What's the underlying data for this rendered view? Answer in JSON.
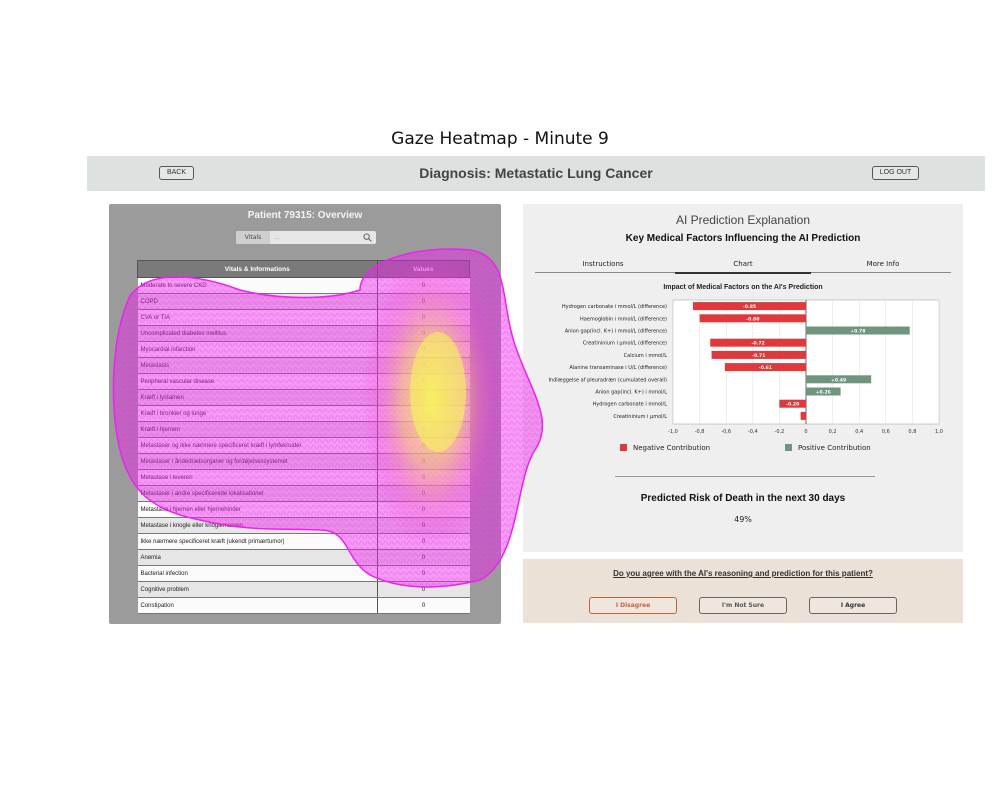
{
  "figure_title": "Gaze Heatmap - Minute 9",
  "header": {
    "back_label": "BACK",
    "title": "Diagnosis: Metastatic Lung Cancer",
    "logout_label": "LOG OUT"
  },
  "overview": {
    "title": "Patient 79315: Overview",
    "search_tag": "Vitals",
    "search_placeholder": "...",
    "col_left": "Vitals & Informations",
    "col_right": "Values",
    "rows": [
      {
        "name": "Moderate to severe CKD",
        "value": "0"
      },
      {
        "name": "COPD",
        "value": "0"
      },
      {
        "name": "CVA or TIA",
        "value": "0"
      },
      {
        "name": "Uncomplicated diabetes mellitus",
        "value": "0"
      },
      {
        "name": "Myocardial infarction",
        "value": "0"
      },
      {
        "name": "Metastasis",
        "value": "0"
      },
      {
        "name": "Peripheral vascular disease",
        "value": "0"
      },
      {
        "name": "Kræft i lystamen",
        "value": "0"
      },
      {
        "name": "Kræft i bronkier og lunge",
        "value": "1"
      },
      {
        "name": "Kræft i hjernen",
        "value": "0"
      },
      {
        "name": "Metastaser og ikke nærmere specificeret kræft i lymfeknuder",
        "value": "0"
      },
      {
        "name": "Metastaser i åndedrætsorganer og fordøjelsessystemet",
        "value": "0"
      },
      {
        "name": "Metastase i leveren",
        "value": "0"
      },
      {
        "name": "Metastaser i andre specificerede lokalisationer",
        "value": "0"
      },
      {
        "name": "Metastase i hjernen eller hjernehinder",
        "value": "0"
      },
      {
        "name": "Metastase i knogle eller knoglemarven",
        "value": "0"
      },
      {
        "name": "Ikke nærmere specificeret kræft (ukendt primærtumor)",
        "value": "0"
      },
      {
        "name": "Anemia",
        "value": "0"
      },
      {
        "name": "Bacterial infection",
        "value": "0"
      },
      {
        "name": "Cognitive problem",
        "value": "0"
      },
      {
        "name": "Constipation",
        "value": "0"
      }
    ]
  },
  "explanation": {
    "title": "AI Prediction Explanation",
    "subtitle": "Key Medical Factors Influencing the AI Prediction",
    "tabs": [
      "Instructions",
      "Chart",
      "More Info"
    ],
    "active_tab": "Chart",
    "risk_title": "Predicted Risk of Death in the next 30 days",
    "risk_value": "49%"
  },
  "chart_data": {
    "type": "bar",
    "orientation": "horizontal",
    "title": "Impact of Medical Factors on the AI's Prediction",
    "categories": [
      "Hydrogen carbonate i mmol/L (difference)",
      "Haemoglobin i mmol/L (difference)",
      "Anion gap(incl. K+) i mmol/L (difference)",
      "Creatininium i µmol/L (difference)",
      "Calcium i mmol/L",
      "Alanine transaminase i U/L (difference)",
      "Indlæggelse af pleuradræn (cumulated overall)",
      "Anion gap(incl. K+) i mmol/L",
      "Hydrogen carbonate i mmol/L",
      "Creatininium i µmol/L"
    ],
    "values": [
      -0.85,
      -0.8,
      0.78,
      -0.72,
      -0.71,
      -0.61,
      0.49,
      0.26,
      -0.2,
      -0.04
    ],
    "labels": [
      "-0.85",
      "-0.80",
      "+0.78",
      "-0.72",
      "-0.71",
      "-0.61",
      "+0.49",
      "+0.26",
      "-0.20",
      ""
    ],
    "xlim": [
      -1.0,
      1.0
    ],
    "xticks": [
      "-1,0",
      "-0,8",
      "-0,6",
      "-0,4",
      "-0,2",
      "0",
      "0,2",
      "0,4",
      "0,6",
      "0,8",
      "1,0"
    ],
    "grid": true,
    "negative_color": "#e0393c",
    "positive_color": "#6f957f",
    "legend": [
      "Negative Contribution",
      "Positive Contribution"
    ],
    "legend_placement": "bottom"
  },
  "agreement": {
    "question": "Do you agree with the AI's reasoning and prediction for this patient?",
    "disagree": "I Disagree",
    "not_sure": "I'm Not Sure",
    "agree": "I Agree"
  },
  "heatmap": {
    "color_low": "#ee22ee",
    "color_high": "#f7f75a"
  }
}
